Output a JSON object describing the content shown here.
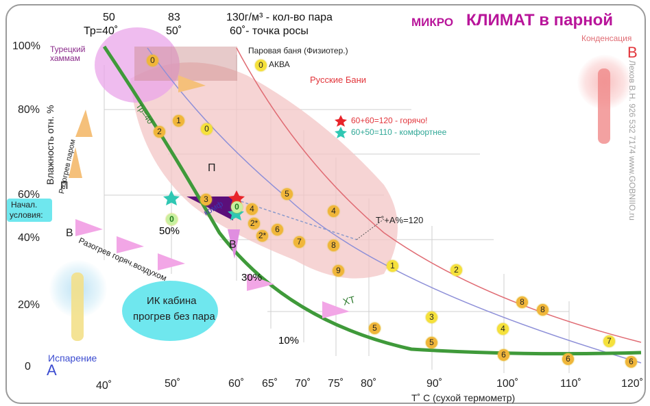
{
  "title_small": "МИКРО",
  "title_big": "КЛИМАТ в парной",
  "condensation": "Конденсация",
  "corner_b": "B",
  "corner_a": "A",
  "evaporation": "Испарение",
  "top_axis": {
    "tick1": "50",
    "tick1b": "Тр=40˚",
    "tick2": "83",
    "tick2b": "50˚",
    "note1": "130г/м³ - кол-во пара",
    "note2": "60˚- точка росы"
  },
  "y_ticks": [
    "100%",
    "80%",
    "60%",
    "40%",
    "20%",
    "0"
  ],
  "x_ticks": [
    "40˚",
    "50˚",
    "60˚",
    "65˚",
    "70˚",
    "75˚",
    "80˚",
    "90˚",
    "100˚",
    "110˚",
    "120˚"
  ],
  "y_axis_label": "Влажность отн. %",
  "x_axis_label": "Т˚ С (сухой термометр)",
  "rh_labels": [
    "50%",
    "30%",
    "10%"
  ],
  "zones": {
    "hammam": "Турецкий хаммам",
    "steam_bath": "Паровая баня (Физиотер.)",
    "aqua": "АКВА",
    "russian": "Русские  Бани",
    "ir_cabin_1": "ИК кабина",
    "ir_cabin_2": "прогрев без пара",
    "start_1": "Начал.",
    "start_2": "условия:",
    "heat_steam": "Разогрев паром",
    "heat_air": "Разогрев горяч.воздухом",
    "tr40": "Тр=40",
    "comf": "комф",
    "xt": "ХТ",
    "t_plus_a": "Т˚+А%=120",
    "p_letter": "П",
    "v_letter": "В"
  },
  "legend": {
    "hot": "60+60=120 - горячо!",
    "comfort": "60+50=110 - комфортнее"
  },
  "colors": {
    "title": "#b8159a",
    "green_curve": "#3f9a3a",
    "red_curve": "#e06b73",
    "blue_curve": "#8d8fd8",
    "zone_pink": "#f3c6c6",
    "hammam": "#e8a3e8",
    "cyan": "#6fe7ee",
    "star_red": "#e8242a",
    "star_teal": "#2fc7b3",
    "purple": "#5b0f7a"
  },
  "watermark": "Лехов В.Н.  926 532 7174  www.GOBNIIO.ru",
  "badges": [
    "0",
    "1",
    "2",
    "0",
    "П",
    "3",
    "0",
    "4",
    "5",
    "2*",
    "6",
    "4",
    "2*",
    "7",
    "8",
    "9",
    "1",
    "2",
    "3",
    "4",
    "5",
    "5",
    "8",
    "8",
    "6",
    "6",
    "7",
    "6",
    "0",
    "0"
  ]
}
